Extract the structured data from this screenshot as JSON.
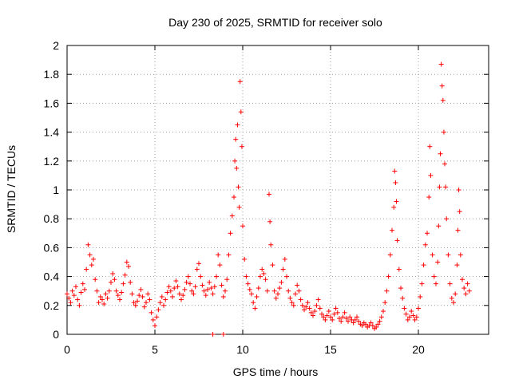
{
  "chart_data": {
    "type": "scatter",
    "title": "Day 230 of 2025, SRMTID for receiver solo",
    "xlabel": "GPS time / hours",
    "ylabel": "SRMTID / TECUs",
    "xlim": [
      0,
      24
    ],
    "ylim": [
      0,
      2
    ],
    "xticks": [
      0,
      5,
      10,
      15,
      20
    ],
    "xtick_labels": [
      "0",
      "5",
      "10",
      "15",
      "20"
    ],
    "yticks": [
      0,
      0.2,
      0.4,
      0.6,
      0.8,
      1,
      1.2,
      1.4,
      1.6,
      1.8,
      2
    ],
    "ytick_labels": [
      "0",
      "0.2",
      "0.4",
      "0.6",
      "0.8",
      "1",
      "1.2",
      "1.4",
      "1.6",
      "1.8",
      "2"
    ],
    "grid": true,
    "marker": "+",
    "color": "#ff0000",
    "series": [
      {
        "name": "SRMTID",
        "points": [
          [
            0.0,
            0.28
          ],
          [
            0.1,
            0.25
          ],
          [
            0.2,
            0.22
          ],
          [
            0.3,
            0.3
          ],
          [
            0.4,
            0.27
          ],
          [
            0.5,
            0.33
          ],
          [
            0.6,
            0.24
          ],
          [
            0.7,
            0.2
          ],
          [
            0.8,
            0.29
          ],
          [
            0.9,
            0.35
          ],
          [
            1.0,
            0.31
          ],
          [
            1.1,
            0.45
          ],
          [
            1.2,
            0.62
          ],
          [
            1.3,
            0.55
          ],
          [
            1.4,
            0.48
          ],
          [
            1.5,
            0.52
          ],
          [
            1.6,
            0.38
          ],
          [
            1.7,
            0.3
          ],
          [
            1.8,
            0.22
          ],
          [
            1.9,
            0.26
          ],
          [
            2.0,
            0.24
          ],
          [
            2.1,
            0.21
          ],
          [
            2.2,
            0.28
          ],
          [
            2.3,
            0.25
          ],
          [
            2.4,
            0.3
          ],
          [
            2.5,
            0.36
          ],
          [
            2.6,
            0.42
          ],
          [
            2.7,
            0.38
          ],
          [
            2.8,
            0.3
          ],
          [
            2.9,
            0.27
          ],
          [
            3.0,
            0.24
          ],
          [
            3.1,
            0.29
          ],
          [
            3.2,
            0.35
          ],
          [
            3.3,
            0.41
          ],
          [
            3.4,
            0.5
          ],
          [
            3.5,
            0.47
          ],
          [
            3.6,
            0.36
          ],
          [
            3.7,
            0.28
          ],
          [
            3.8,
            0.22
          ],
          [
            3.9,
            0.2
          ],
          [
            4.0,
            0.23
          ],
          [
            4.1,
            0.27
          ],
          [
            4.2,
            0.31
          ],
          [
            4.3,
            0.26
          ],
          [
            4.4,
            0.19
          ],
          [
            4.5,
            0.22
          ],
          [
            4.6,
            0.28
          ],
          [
            4.7,
            0.24
          ],
          [
            4.8,
            0.15
          ],
          [
            4.9,
            0.1
          ],
          [
            5.0,
            0.06
          ],
          [
            5.1,
            0.12
          ],
          [
            5.2,
            0.17
          ],
          [
            5.3,
            0.22
          ],
          [
            5.4,
            0.26
          ],
          [
            5.5,
            0.2
          ],
          [
            5.6,
            0.24
          ],
          [
            5.7,
            0.29
          ],
          [
            5.8,
            0.33
          ],
          [
            5.9,
            0.3
          ],
          [
            6.0,
            0.26
          ],
          [
            6.1,
            0.32
          ],
          [
            6.2,
            0.37
          ],
          [
            6.3,
            0.33
          ],
          [
            6.4,
            0.28
          ],
          [
            6.5,
            0.24
          ],
          [
            6.6,
            0.27
          ],
          [
            6.7,
            0.31
          ],
          [
            6.8,
            0.36
          ],
          [
            6.9,
            0.4
          ],
          [
            7.0,
            0.35
          ],
          [
            7.1,
            0.3
          ],
          [
            7.2,
            0.28
          ],
          [
            7.3,
            0.33
          ],
          [
            7.4,
            0.45
          ],
          [
            7.5,
            0.49
          ],
          [
            7.6,
            0.4
          ],
          [
            7.7,
            0.34
          ],
          [
            7.8,
            0.3
          ],
          [
            7.9,
            0.27
          ],
          [
            8.0,
            0.31
          ],
          [
            8.1,
            0.36
          ],
          [
            8.2,
            0.32
          ],
          [
            8.3,
            0.28
          ],
          [
            8.4,
            0.33
          ],
          [
            8.5,
            0.4
          ],
          [
            8.6,
            0.55
          ],
          [
            8.7,
            0.48
          ],
          [
            8.8,
            0.34
          ],
          [
            8.9,
            0.26
          ],
          [
            9.0,
            0.3
          ],
          [
            9.1,
            0.38
          ],
          [
            9.2,
            0.55
          ],
          [
            9.3,
            0.7
          ],
          [
            9.4,
            0.82
          ],
          [
            9.5,
            0.95
          ],
          [
            9.55,
            1.2
          ],
          [
            9.6,
            1.35
          ],
          [
            9.65,
            1.15
          ],
          [
            9.7,
            1.45
          ],
          [
            9.75,
            1.02
          ],
          [
            9.8,
            0.88
          ],
          [
            9.85,
            1.75
          ],
          [
            9.9,
            1.54
          ],
          [
            9.95,
            1.3
          ],
          [
            10.0,
            0.75
          ],
          [
            10.1,
            0.52
          ],
          [
            10.2,
            0.4
          ],
          [
            10.3,
            0.35
          ],
          [
            10.4,
            0.31
          ],
          [
            10.5,
            0.28
          ],
          [
            10.6,
            0.22
          ],
          [
            10.7,
            0.18
          ],
          [
            10.8,
            0.26
          ],
          [
            10.9,
            0.32
          ],
          [
            11.0,
            0.4
          ],
          [
            11.1,
            0.45
          ],
          [
            11.2,
            0.42
          ],
          [
            11.3,
            0.38
          ],
          [
            11.4,
            0.3
          ],
          [
            11.5,
            0.97
          ],
          [
            11.55,
            0.78
          ],
          [
            11.6,
            0.62
          ],
          [
            11.7,
            0.48
          ],
          [
            11.8,
            0.3
          ],
          [
            11.9,
            0.25
          ],
          [
            12.0,
            0.28
          ],
          [
            12.1,
            0.32
          ],
          [
            12.2,
            0.36
          ],
          [
            12.3,
            0.45
          ],
          [
            12.4,
            0.52
          ],
          [
            12.5,
            0.4
          ],
          [
            12.6,
            0.3
          ],
          [
            12.7,
            0.25
          ],
          [
            12.8,
            0.22
          ],
          [
            12.9,
            0.2
          ],
          [
            13.0,
            0.28
          ],
          [
            13.1,
            0.34
          ],
          [
            13.2,
            0.3
          ],
          [
            13.3,
            0.24
          ],
          [
            13.4,
            0.2
          ],
          [
            13.5,
            0.17
          ],
          [
            13.6,
            0.19
          ],
          [
            13.7,
            0.22
          ],
          [
            13.8,
            0.18
          ],
          [
            13.9,
            0.15
          ],
          [
            14.0,
            0.13
          ],
          [
            14.1,
            0.16
          ],
          [
            14.2,
            0.2
          ],
          [
            14.3,
            0.24
          ],
          [
            14.4,
            0.18
          ],
          [
            14.5,
            0.14
          ],
          [
            14.6,
            0.12
          ],
          [
            14.7,
            0.1
          ],
          [
            14.8,
            0.13
          ],
          [
            14.9,
            0.16
          ],
          [
            15.0,
            0.12
          ],
          [
            15.1,
            0.1
          ],
          [
            15.2,
            0.14
          ],
          [
            15.3,
            0.18
          ],
          [
            15.4,
            0.15
          ],
          [
            15.5,
            0.11
          ],
          [
            15.6,
            0.09
          ],
          [
            15.7,
            0.12
          ],
          [
            15.8,
            0.15
          ],
          [
            15.9,
            0.11
          ],
          [
            16.0,
            0.09
          ],
          [
            16.1,
            0.12
          ],
          [
            16.2,
            0.1
          ],
          [
            16.3,
            0.08
          ],
          [
            16.4,
            0.1
          ],
          [
            16.5,
            0.12
          ],
          [
            16.6,
            0.09
          ],
          [
            16.7,
            0.07
          ],
          [
            16.8,
            0.06
          ],
          [
            16.9,
            0.08
          ],
          [
            17.0,
            0.07
          ],
          [
            17.1,
            0.05
          ],
          [
            17.2,
            0.06
          ],
          [
            17.3,
            0.08
          ],
          [
            17.4,
            0.06
          ],
          [
            17.5,
            0.04
          ],
          [
            17.6,
            0.05
          ],
          [
            17.7,
            0.07
          ],
          [
            17.8,
            0.09
          ],
          [
            17.9,
            0.12
          ],
          [
            18.0,
            0.16
          ],
          [
            18.1,
            0.22
          ],
          [
            18.2,
            0.3
          ],
          [
            18.3,
            0.4
          ],
          [
            18.4,
            0.55
          ],
          [
            18.5,
            0.72
          ],
          [
            18.6,
            0.88
          ],
          [
            18.65,
            1.13
          ],
          [
            18.7,
            1.05
          ],
          [
            18.75,
            0.92
          ],
          [
            18.8,
            0.65
          ],
          [
            18.9,
            0.45
          ],
          [
            19.0,
            0.32
          ],
          [
            19.1,
            0.25
          ],
          [
            19.2,
            0.18
          ],
          [
            19.3,
            0.14
          ],
          [
            19.4,
            0.1
          ],
          [
            19.5,
            0.12
          ],
          [
            19.6,
            0.16
          ],
          [
            19.7,
            0.13
          ],
          [
            19.8,
            0.1
          ],
          [
            19.9,
            0.12
          ],
          [
            20.0,
            0.18
          ],
          [
            20.1,
            0.26
          ],
          [
            20.2,
            0.35
          ],
          [
            20.3,
            0.48
          ],
          [
            20.4,
            0.62
          ],
          [
            20.5,
            0.7
          ],
          [
            20.6,
            0.95
          ],
          [
            20.65,
            1.3
          ],
          [
            20.7,
            1.1
          ],
          [
            20.8,
            0.55
          ],
          [
            20.9,
            0.4
          ],
          [
            21.0,
            0.35
          ],
          [
            21.1,
            0.5
          ],
          [
            21.15,
            0.75
          ],
          [
            21.2,
            1.02
          ],
          [
            21.25,
            1.25
          ],
          [
            21.3,
            1.87
          ],
          [
            21.35,
            1.72
          ],
          [
            21.4,
            1.62
          ],
          [
            21.45,
            1.4
          ],
          [
            21.5,
            1.18
          ],
          [
            21.55,
            1.02
          ],
          [
            21.6,
            0.8
          ],
          [
            21.7,
            0.55
          ],
          [
            21.8,
            0.35
          ],
          [
            21.9,
            0.25
          ],
          [
            22.0,
            0.22
          ],
          [
            22.1,
            0.28
          ],
          [
            22.2,
            0.48
          ],
          [
            22.25,
            0.72
          ],
          [
            22.3,
            1.0
          ],
          [
            22.35,
            0.85
          ],
          [
            22.4,
            0.55
          ],
          [
            22.5,
            0.38
          ],
          [
            22.6,
            0.32
          ],
          [
            22.7,
            0.28
          ],
          [
            22.8,
            0.35
          ],
          [
            22.9,
            0.3
          ],
          [
            8.3,
            0.0
          ],
          [
            8.9,
            0.0
          ]
        ]
      }
    ]
  }
}
